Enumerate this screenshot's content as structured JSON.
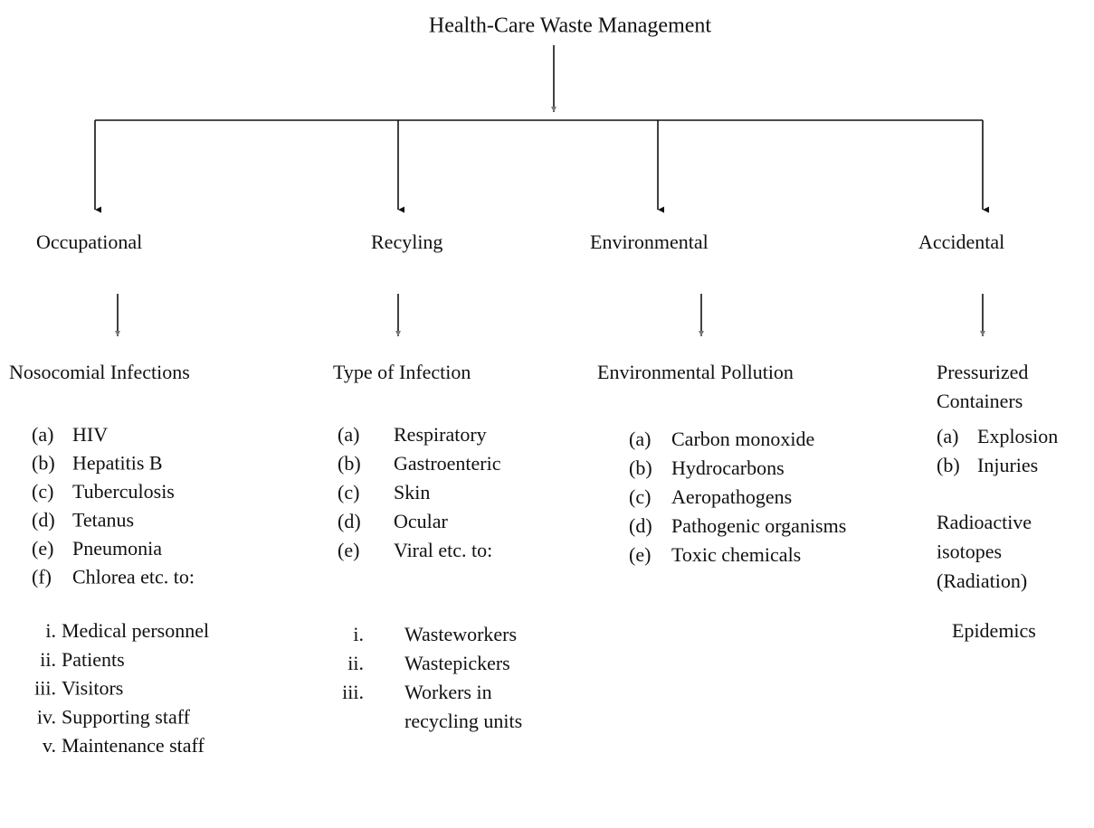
{
  "title": "Health-Care Waste Management",
  "columns": [
    {
      "heading": "Occupational",
      "subheading": [
        "Nosocomial Infections"
      ],
      "items": [
        {
          "marker": "(a)",
          "text": "HIV"
        },
        {
          "marker": "(b)",
          "text": "Hepatitis B"
        },
        {
          "marker": "(c)",
          "text": "Tuberculosis"
        },
        {
          "marker": "(d)",
          "text": "Tetanus"
        },
        {
          "marker": "(e)",
          "text": "Pneumonia"
        },
        {
          "marker": "(f)",
          "text": "Chlorea etc. to:"
        }
      ],
      "targets": [
        {
          "marker": "i.",
          "lines": [
            "Medical personnel"
          ]
        },
        {
          "marker": "ii.",
          "lines": [
            "Patients"
          ]
        },
        {
          "marker": "iii.",
          "lines": [
            "Visitors"
          ]
        },
        {
          "marker": "iv.",
          "lines": [
            "Supporting staff"
          ]
        },
        {
          "marker": "v.",
          "lines": [
            "Maintenance staff"
          ]
        }
      ]
    },
    {
      "heading": "Recyling",
      "subheading": [
        "Type of Infection"
      ],
      "items": [
        {
          "marker": "(a)",
          "text": "Respiratory"
        },
        {
          "marker": "(b)",
          "text": "Gastroenteric"
        },
        {
          "marker": "(c)",
          "text": "Skin"
        },
        {
          "marker": "(d)",
          "text": "Ocular"
        },
        {
          "marker": "(e)",
          "text": "Viral etc. to:"
        }
      ],
      "targets": [
        {
          "marker": "i.",
          "lines": [
            "Wasteworkers"
          ]
        },
        {
          "marker": "ii.",
          "lines": [
            "Wastepickers"
          ]
        },
        {
          "marker": "iii.",
          "lines": [
            "Workers in",
            "recycling units"
          ]
        }
      ]
    },
    {
      "heading": "Environmental",
      "subheading": [
        "Environmental Pollution"
      ],
      "items": [
        {
          "marker": "(a)",
          "text": "Carbon monoxide"
        },
        {
          "marker": "(b)",
          "text": "Hydrocarbons"
        },
        {
          "marker": "(c)",
          "text": "Aeropathogens"
        },
        {
          "marker": "(d)",
          "text": "Pathogenic organisms"
        },
        {
          "marker": "(e)",
          "text": "Toxic chemicals"
        }
      ]
    },
    {
      "heading": "Accidental",
      "subheading": [
        "Pressurized",
        "Containers"
      ],
      "items": [
        {
          "marker": "(a)",
          "text": "Explosion"
        },
        {
          "marker": "(b)",
          "text": "Injuries"
        }
      ],
      "notes": [
        [
          "Radioactive",
          "isotopes",
          "(Radiation)"
        ],
        [
          "Epidemics"
        ]
      ]
    }
  ]
}
